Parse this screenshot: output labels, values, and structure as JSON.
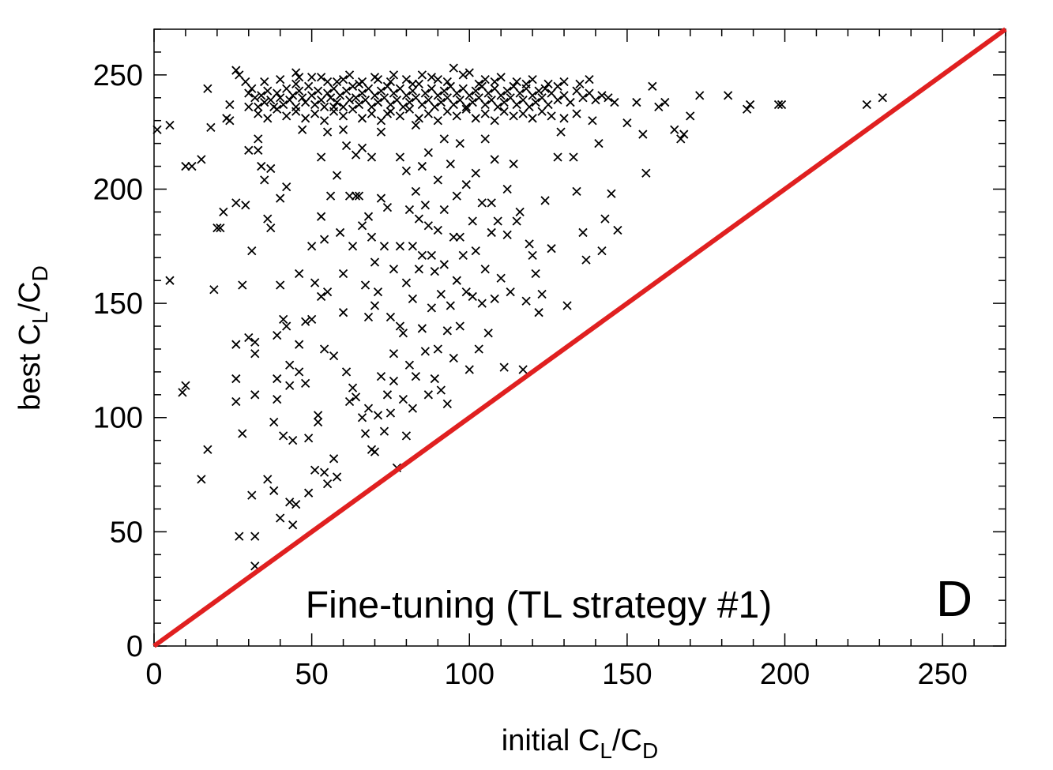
{
  "chart_data": {
    "type": "scatter",
    "title": "",
    "xlabel": {
      "base": "initial C",
      "sub1": "L",
      "mid": "/C",
      "sub2": "D"
    },
    "ylabel": {
      "base": "best C",
      "sub1": "L",
      "mid": "/C",
      "sub2": "D"
    },
    "xlim": [
      0,
      270
    ],
    "ylim": [
      0,
      270
    ],
    "x_ticks": [
      0,
      50,
      100,
      150,
      200,
      250
    ],
    "y_ticks": [
      0,
      50,
      100,
      150,
      200,
      250
    ],
    "x_tick_labels": [
      "0",
      "50",
      "100",
      "150",
      "200",
      "250"
    ],
    "y_tick_labels": [
      "0",
      "50",
      "100",
      "150",
      "200",
      "250"
    ],
    "grid": false,
    "marker": "x",
    "marker_color": "#000000",
    "reference_line": {
      "from": [
        0,
        0
      ],
      "to": [
        270,
        270
      ],
      "color": "#e02020"
    },
    "annotations": {
      "method": "Fine-tuning (TL strategy #1)",
      "panel": "D"
    },
    "points": [
      [
        1,
        226
      ],
      [
        5,
        228
      ],
      [
        5,
        160
      ],
      [
        9,
        111
      ],
      [
        10,
        114
      ],
      [
        10,
        210
      ],
      [
        12,
        210
      ],
      [
        15,
        213
      ],
      [
        15,
        73
      ],
      [
        17,
        86
      ],
      [
        17,
        244
      ],
      [
        18,
        227
      ],
      [
        19,
        156
      ],
      [
        20,
        183
      ],
      [
        21,
        183
      ],
      [
        22,
        190
      ],
      [
        23,
        231
      ],
      [
        24,
        230
      ],
      [
        24,
        237
      ],
      [
        26,
        194
      ],
      [
        26,
        132
      ],
      [
        26,
        107
      ],
      [
        26,
        117
      ],
      [
        27,
        48
      ],
      [
        28,
        93
      ],
      [
        28,
        158
      ],
      [
        29,
        193
      ],
      [
        30,
        135
      ],
      [
        30,
        217
      ],
      [
        30,
        236
      ],
      [
        31,
        173
      ],
      [
        31,
        66
      ],
      [
        32,
        133
      ],
      [
        32,
        128
      ],
      [
        32,
        110
      ],
      [
        32,
        48
      ],
      [
        32,
        35
      ],
      [
        33,
        217
      ],
      [
        33,
        222
      ],
      [
        34,
        210
      ],
      [
        35,
        204
      ],
      [
        36,
        73
      ],
      [
        36,
        187
      ],
      [
        37,
        209
      ],
      [
        37,
        183
      ],
      [
        38,
        98
      ],
      [
        38,
        68
      ],
      [
        39,
        108
      ],
      [
        39,
        136
      ],
      [
        39,
        117
      ],
      [
        40,
        196
      ],
      [
        40,
        158
      ],
      [
        40,
        56
      ],
      [
        41,
        92
      ],
      [
        41,
        143
      ],
      [
        42,
        201
      ],
      [
        42,
        140
      ],
      [
        43,
        123
      ],
      [
        43,
        114
      ],
      [
        43,
        63
      ],
      [
        44,
        90
      ],
      [
        44,
        53
      ],
      [
        45,
        62
      ],
      [
        46,
        163
      ],
      [
        46,
        120
      ],
      [
        46,
        132
      ],
      [
        47,
        226
      ],
      [
        48,
        142
      ],
      [
        48,
        115
      ],
      [
        49,
        67
      ],
      [
        49,
        91
      ],
      [
        50,
        175
      ],
      [
        50,
        143
      ],
      [
        51,
        159
      ],
      [
        51,
        77
      ],
      [
        52,
        98
      ],
      [
        52,
        101
      ],
      [
        53,
        214
      ],
      [
        53,
        188
      ],
      [
        53,
        153
      ],
      [
        54,
        178
      ],
      [
        54,
        130
      ],
      [
        54,
        76
      ],
      [
        55,
        225
      ],
      [
        55,
        155
      ],
      [
        55,
        71
      ],
      [
        56,
        197
      ],
      [
        57,
        236
      ],
      [
        57,
        127
      ],
      [
        57,
        82
      ],
      [
        58,
        206
      ],
      [
        58,
        74
      ],
      [
        59,
        181
      ],
      [
        60,
        163
      ],
      [
        60,
        226
      ],
      [
        60,
        146
      ],
      [
        61,
        219
      ],
      [
        61,
        120
      ],
      [
        62,
        197
      ],
      [
        62,
        107
      ],
      [
        63,
        175
      ],
      [
        63,
        113
      ],
      [
        64,
        215
      ],
      [
        64,
        197
      ],
      [
        64,
        109
      ],
      [
        65,
        197
      ],
      [
        66,
        218
      ],
      [
        66,
        184
      ],
      [
        66,
        100
      ],
      [
        67,
        158
      ],
      [
        67,
        93
      ],
      [
        68,
        188
      ],
      [
        68,
        144
      ],
      [
        68,
        104
      ],
      [
        69,
        214
      ],
      [
        69,
        179
      ],
      [
        69,
        86
      ],
      [
        70,
        168
      ],
      [
        70,
        149
      ],
      [
        70,
        85
      ],
      [
        71,
        155
      ],
      [
        71,
        101
      ],
      [
        72,
        225
      ],
      [
        72,
        196
      ],
      [
        72,
        118
      ],
      [
        73,
        175
      ],
      [
        73,
        94
      ],
      [
        74,
        233
      ],
      [
        74,
        192
      ],
      [
        74,
        110
      ],
      [
        75,
        144
      ],
      [
        75,
        102
      ],
      [
        76,
        165
      ],
      [
        76,
        128
      ],
      [
        76,
        116
      ],
      [
        77,
        78
      ],
      [
        78,
        214
      ],
      [
        78,
        175
      ],
      [
        78,
        140
      ],
      [
        79,
        137
      ],
      [
        79,
        108
      ],
      [
        80,
        208
      ],
      [
        80,
        159
      ],
      [
        80,
        92
      ],
      [
        81,
        191
      ],
      [
        81,
        123
      ],
      [
        82,
        175
      ],
      [
        82,
        152
      ],
      [
        82,
        104
      ],
      [
        83,
        228
      ],
      [
        83,
        199
      ],
      [
        83,
        118
      ],
      [
        84,
        187
      ],
      [
        84,
        165
      ],
      [
        85,
        210
      ],
      [
        85,
        171
      ],
      [
        85,
        139
      ],
      [
        86,
        193
      ],
      [
        86,
        129
      ],
      [
        87,
        216
      ],
      [
        87,
        184
      ],
      [
        87,
        110
      ],
      [
        88,
        171
      ],
      [
        88,
        148
      ],
      [
        89,
        164
      ],
      [
        89,
        117
      ],
      [
        90,
        204
      ],
      [
        90,
        182
      ],
      [
        90,
        130
      ],
      [
        91,
        154
      ],
      [
        91,
        112
      ],
      [
        92,
        222
      ],
      [
        92,
        191
      ],
      [
        92,
        167
      ],
      [
        93,
        138
      ],
      [
        93,
        106
      ],
      [
        94,
        211
      ],
      [
        94,
        149
      ],
      [
        95,
        179
      ],
      [
        95,
        126
      ],
      [
        96,
        197
      ],
      [
        96,
        160
      ],
      [
        97,
        220
      ],
      [
        97,
        179
      ],
      [
        97,
        140
      ],
      [
        98,
        171
      ],
      [
        99,
        202
      ],
      [
        99,
        155
      ],
      [
        100,
        121
      ],
      [
        101,
        186
      ],
      [
        101,
        153
      ],
      [
        102,
        207
      ],
      [
        102,
        173
      ],
      [
        103,
        130
      ],
      [
        104,
        194
      ],
      [
        104,
        150
      ],
      [
        105,
        222
      ],
      [
        105,
        165
      ],
      [
        106,
        137
      ],
      [
        107,
        194
      ],
      [
        107,
        181
      ],
      [
        108,
        213
      ],
      [
        108,
        152
      ],
      [
        109,
        186
      ],
      [
        110,
        161
      ],
      [
        111,
        122
      ],
      [
        112,
        200
      ],
      [
        112,
        180
      ],
      [
        113,
        155
      ],
      [
        114,
        211
      ],
      [
        115,
        186
      ],
      [
        116,
        190
      ],
      [
        117,
        121
      ],
      [
        118,
        151
      ],
      [
        119,
        176
      ],
      [
        120,
        171
      ],
      [
        121,
        163
      ],
      [
        122,
        146
      ],
      [
        123,
        154
      ],
      [
        124,
        195
      ],
      [
        126,
        174
      ],
      [
        128,
        214
      ],
      [
        129,
        225
      ],
      [
        131,
        149
      ],
      [
        133,
        214
      ],
      [
        134,
        199
      ],
      [
        136,
        181
      ],
      [
        137,
        169
      ],
      [
        139,
        230
      ],
      [
        141,
        220
      ],
      [
        142,
        173
      ],
      [
        143,
        187
      ],
      [
        145,
        198
      ],
      [
        147,
        182
      ],
      [
        150,
        229
      ],
      [
        153,
        238
      ],
      [
        155,
        224
      ],
      [
        156,
        207
      ],
      [
        158,
        245
      ],
      [
        160,
        236
      ],
      [
        162,
        238
      ],
      [
        165,
        226
      ],
      [
        167,
        222
      ],
      [
        168,
        224
      ],
      [
        170,
        232
      ],
      [
        173,
        241
      ],
      [
        182,
        241
      ],
      [
        188,
        235
      ],
      [
        189,
        237
      ],
      [
        198,
        237
      ],
      [
        199,
        237
      ],
      [
        226,
        237
      ],
      [
        231,
        240
      ],
      [
        30,
        242
      ],
      [
        31,
        244
      ],
      [
        32,
        240
      ],
      [
        33,
        236
      ],
      [
        34,
        241
      ],
      [
        35,
        238
      ],
      [
        36,
        243
      ],
      [
        37,
        239
      ],
      [
        38,
        236
      ],
      [
        39,
        242
      ],
      [
        40,
        240
      ],
      [
        41,
        237
      ],
      [
        42,
        244
      ],
      [
        43,
        239
      ],
      [
        44,
        241
      ],
      [
        45,
        236
      ],
      [
        46,
        243
      ],
      [
        47,
        240
      ],
      [
        48,
        238
      ],
      [
        49,
        245
      ],
      [
        50,
        241
      ],
      [
        51,
        237
      ],
      [
        52,
        243
      ],
      [
        53,
        239
      ],
      [
        54,
        236
      ],
      [
        55,
        242
      ],
      [
        56,
        240
      ],
      [
        57,
        244
      ],
      [
        58,
        238
      ],
      [
        59,
        241
      ],
      [
        60,
        236
      ],
      [
        61,
        243
      ],
      [
        62,
        239
      ],
      [
        63,
        245
      ],
      [
        64,
        240
      ],
      [
        65,
        237
      ],
      [
        66,
        242
      ],
      [
        67,
        239
      ],
      [
        68,
        244
      ],
      [
        69,
        236
      ],
      [
        70,
        241
      ],
      [
        71,
        238
      ],
      [
        72,
        243
      ],
      [
        73,
        240
      ],
      [
        74,
        245
      ],
      [
        75,
        237
      ],
      [
        76,
        242
      ],
      [
        77,
        239
      ],
      [
        78,
        244
      ],
      [
        79,
        236
      ],
      [
        80,
        241
      ],
      [
        81,
        238
      ],
      [
        82,
        243
      ],
      [
        83,
        240
      ],
      [
        84,
        246
      ],
      [
        85,
        237
      ],
      [
        86,
        242
      ],
      [
        87,
        239
      ],
      [
        88,
        244
      ],
      [
        89,
        236
      ],
      [
        90,
        241
      ],
      [
        91,
        238
      ],
      [
        92,
        243
      ],
      [
        93,
        240
      ],
      [
        94,
        245
      ],
      [
        95,
        237
      ],
      [
        96,
        242
      ],
      [
        97,
        239
      ],
      [
        98,
        244
      ],
      [
        99,
        236
      ],
      [
        100,
        241
      ],
      [
        101,
        238
      ],
      [
        102,
        243
      ],
      [
        103,
        240
      ],
      [
        104,
        245
      ],
      [
        105,
        237
      ],
      [
        106,
        242
      ],
      [
        107,
        239
      ],
      [
        108,
        244
      ],
      [
        109,
        236
      ],
      [
        110,
        241
      ],
      [
        111,
        238
      ],
      [
        112,
        243
      ],
      [
        113,
        240
      ],
      [
        114,
        245
      ],
      [
        115,
        237
      ],
      [
        116,
        242
      ],
      [
        117,
        239
      ],
      [
        118,
        244
      ],
      [
        119,
        236
      ],
      [
        120,
        241
      ],
      [
        121,
        238
      ],
      [
        122,
        243
      ],
      [
        123,
        240
      ],
      [
        124,
        244
      ],
      [
        125,
        237
      ],
      [
        126,
        242
      ],
      [
        128,
        239
      ],
      [
        130,
        241
      ],
      [
        132,
        238
      ],
      [
        134,
        243
      ],
      [
        136,
        240
      ],
      [
        138,
        242
      ],
      [
        140,
        239
      ],
      [
        142,
        241
      ],
      [
        144,
        240
      ],
      [
        146,
        238
      ],
      [
        33,
        233
      ],
      [
        36,
        231
      ],
      [
        39,
        235
      ],
      [
        42,
        232
      ],
      [
        45,
        234
      ],
      [
        48,
        231
      ],
      [
        51,
        233
      ],
      [
        54,
        230
      ],
      [
        57,
        234
      ],
      [
        60,
        232
      ],
      [
        63,
        235
      ],
      [
        66,
        231
      ],
      [
        69,
        233
      ],
      [
        72,
        230
      ],
      [
        75,
        234
      ],
      [
        78,
        232
      ],
      [
        81,
        235
      ],
      [
        84,
        231
      ],
      [
        87,
        233
      ],
      [
        90,
        230
      ],
      [
        93,
        234
      ],
      [
        96,
        232
      ],
      [
        99,
        235
      ],
      [
        102,
        231
      ],
      [
        105,
        233
      ],
      [
        108,
        230
      ],
      [
        111,
        234
      ],
      [
        114,
        232
      ],
      [
        117,
        233
      ],
      [
        120,
        231
      ],
      [
        123,
        234
      ],
      [
        126,
        232
      ],
      [
        130,
        231
      ],
      [
        134,
        233
      ],
      [
        35,
        247
      ],
      [
        40,
        248
      ],
      [
        45,
        246
      ],
      [
        50,
        249
      ],
      [
        55,
        247
      ],
      [
        60,
        248
      ],
      [
        65,
        246
      ],
      [
        70,
        249
      ],
      [
        75,
        247
      ],
      [
        80,
        248
      ],
      [
        85,
        250
      ],
      [
        90,
        248
      ],
      [
        95,
        253
      ],
      [
        98,
        250
      ],
      [
        100,
        251
      ],
      [
        105,
        248
      ],
      [
        110,
        249
      ],
      [
        115,
        247
      ],
      [
        120,
        248
      ],
      [
        125,
        246
      ],
      [
        130,
        247
      ],
      [
        135,
        246
      ],
      [
        138,
        248
      ],
      [
        27,
        250
      ],
      [
        29,
        247
      ],
      [
        26,
        252
      ],
      [
        45,
        251
      ],
      [
        46,
        249
      ],
      [
        53,
        249
      ],
      [
        58,
        247
      ],
      [
        62,
        250
      ],
      [
        66,
        247
      ],
      [
        71,
        248
      ],
      [
        76,
        250
      ],
      [
        82,
        246
      ],
      [
        88,
        249
      ],
      [
        93,
        247
      ],
      [
        103,
        246
      ],
      [
        108,
        247
      ],
      [
        118,
        246
      ],
      [
        128,
        245
      ]
    ]
  }
}
